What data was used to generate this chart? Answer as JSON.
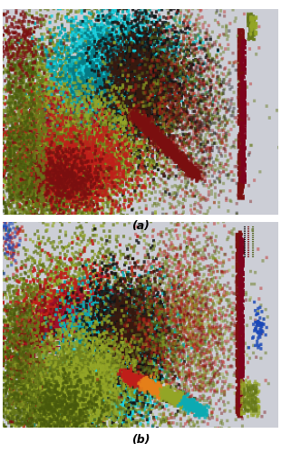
{
  "fig_width": 3.1,
  "fig_height": 5.0,
  "dpi": 100,
  "panel_bg": "#cdd0da",
  "label_a": "(a)",
  "label_b": "(b)",
  "label_fontsize": 9,
  "label_style": "italic",
  "label_fontweight": "bold"
}
